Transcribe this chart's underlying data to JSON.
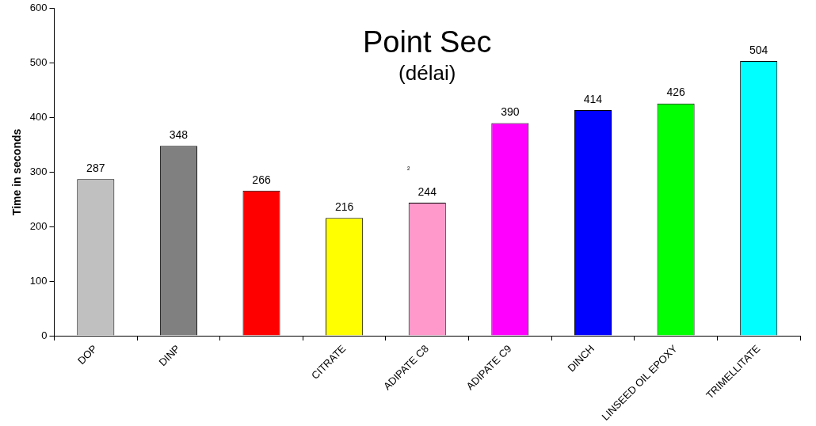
{
  "chart_data": {
    "type": "bar",
    "title": "Point Sec",
    "subtitle": "(délai)",
    "ylabel": "Time in seconds",
    "categories": [
      "DOP",
      "DINP",
      null,
      "CITRATE",
      "ADIPATE C8",
      "ADIPATE C9",
      "DINCH",
      "LINSEED OIL EPOXY",
      "TRIMELLITATE"
    ],
    "values": [
      287,
      348,
      266,
      216,
      244,
      390,
      414,
      426,
      504
    ],
    "colors": [
      "#c0c0c0",
      "#808080",
      "#ff0000",
      "#ffff00",
      "#ff99cc",
      "#ff00ff",
      "#0000ff",
      "#00ff00",
      "#00ffff"
    ],
    "ylim": [
      0,
      600
    ],
    "yticks": [
      0,
      100,
      200,
      300,
      400,
      500,
      600
    ],
    "grid": false,
    "legend": false,
    "data_labels": true,
    "annotations": [
      "²"
    ]
  }
}
